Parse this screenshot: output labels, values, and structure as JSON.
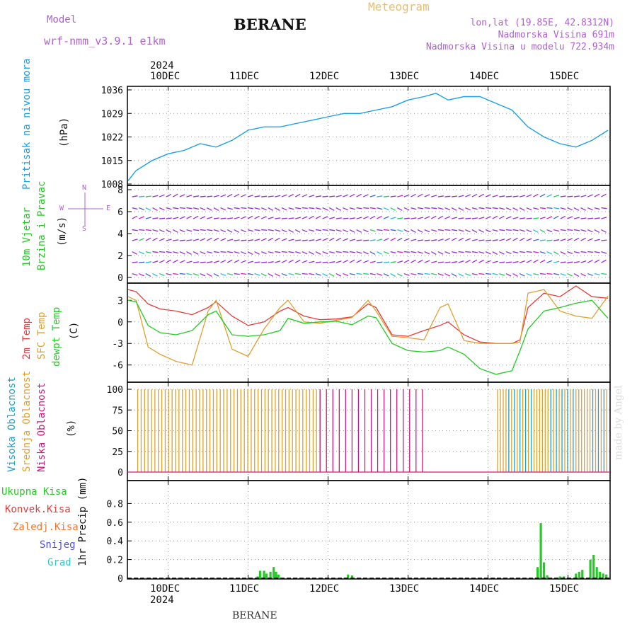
{
  "header": {
    "station": "BERANE",
    "meteogram_label": "Meteogram",
    "model_label": "Model",
    "model_name": "wrf-nmm_v3.9.1 e1km",
    "location": "lon,lat (19.85E, 42.8312N)",
    "elevation": "Nadmorska Visina 691m",
    "model_elevation": "Nadmorska Visina u modelu 722.934m",
    "footer_station": "BERANE",
    "watermark": "made by Angel"
  },
  "colors": {
    "pressure": "#1aa0e6",
    "temp": "#e83c3c",
    "sfc_temp": "#e0a030",
    "dewpt": "#22cc22",
    "high_cloud": "#1fa0c8",
    "mid_cloud": "#e0a030",
    "low_cloud": "#d0187a",
    "rain_total": "#22cc22",
    "rain_conv": "#e83c3c",
    "rain_frz": "#f07830",
    "snow": "#5050e0",
    "hail": "#30c8c8",
    "wind_purple": "#9a2ed8"
  },
  "chart_data": [
    {
      "type": "line",
      "name": "pressure",
      "ylabel_side": "Pritisak na nivou mora",
      "ylabel": "(hPa)",
      "ylim": [
        1008,
        1036
      ],
      "yticks": [
        1008,
        1015,
        1022,
        1029,
        1036
      ],
      "x_day_ticks": [
        "10DEC",
        "11DEC",
        "12DEC",
        "13DEC",
        "14DEC",
        "15DEC"
      ],
      "x_year": "2024",
      "x": [
        9.5,
        9.6,
        9.8,
        10.0,
        10.2,
        10.4,
        10.6,
        10.8,
        11.0,
        11.2,
        11.4,
        11.6,
        11.8,
        12.0,
        12.2,
        12.4,
        12.6,
        12.8,
        13.0,
        13.2,
        13.35,
        13.5,
        13.7,
        13.9,
        14.1,
        14.3,
        14.5,
        14.7,
        14.9,
        15.1,
        15.3,
        15.5
      ],
      "values": [
        1009,
        1012,
        1015,
        1017,
        1018,
        1020,
        1019,
        1021,
        1024,
        1025,
        1025,
        1026,
        1027,
        1028,
        1029,
        1029,
        1030,
        1031,
        1033,
        1034,
        1035,
        1033,
        1034,
        1034,
        1032,
        1030,
        1025,
        1022,
        1020,
        1019,
        1021,
        1024
      ]
    },
    {
      "type": "scatter",
      "name": "wind",
      "ylabel_side_1": "10m Vjetar",
      "ylabel_side_2": "Brzina i Pravac",
      "ylabel": "(m/s)",
      "compass": [
        "N",
        "W",
        "E",
        "S"
      ],
      "ylim": [
        0,
        8
      ],
      "yticks": [
        0,
        2,
        4,
        6,
        8
      ]
    },
    {
      "type": "line",
      "name": "temperature",
      "ylabel_side_1": "2m Temp",
      "ylabel_side_2": "SFC Temp",
      "ylabel_side_3": "dewpt Temp",
      "ylabel": "(C)",
      "ylim": [
        -8,
        5
      ],
      "yticks": [
        -6,
        -3,
        0,
        3
      ],
      "x": [
        9.5,
        9.6,
        9.75,
        9.9,
        10.1,
        10.3,
        10.5,
        10.6,
        10.8,
        11.0,
        11.2,
        11.4,
        11.5,
        11.7,
        11.9,
        12.1,
        12.3,
        12.5,
        12.6,
        12.8,
        13.0,
        13.2,
        13.4,
        13.5,
        13.7,
        13.9,
        14.1,
        14.3,
        14.4,
        14.5,
        14.7,
        14.9,
        15.1,
        15.3,
        15.5
      ],
      "series": [
        {
          "name": "2m Temp",
          "values": [
            4.5,
            4.2,
            2.5,
            1.8,
            1.5,
            1.0,
            2.0,
            2.8,
            0.8,
            -0.5,
            0.0,
            1.5,
            2.0,
            0.8,
            0.3,
            0.4,
            0.7,
            2.5,
            2.0,
            -1.8,
            -2.0,
            -1.2,
            -0.5,
            0.0,
            -1.8,
            -2.8,
            -3.0,
            -3.0,
            -2.5,
            2.0,
            4.0,
            3.5,
            5.0,
            3.5,
            3.3
          ]
        },
        {
          "name": "SFC Temp",
          "values": [
            3.5,
            3.0,
            -3.5,
            -4.5,
            -5.5,
            -6.0,
            1.5,
            3.0,
            -3.8,
            -4.8,
            -1.0,
            2.0,
            3.0,
            0.0,
            -0.2,
            0.2,
            0.6,
            3.0,
            1.5,
            -2.0,
            -2.2,
            -2.5,
            2.0,
            2.5,
            -2.6,
            -3.0,
            -3.0,
            -3.0,
            -2.8,
            4.0,
            4.5,
            1.5,
            0.8,
            0.5,
            3.6
          ]
        },
        {
          "name": "dewpt Temp",
          "values": [
            3.0,
            2.8,
            -0.5,
            -1.5,
            -1.8,
            -1.2,
            1.0,
            1.5,
            -1.8,
            -2.0,
            -1.8,
            -1.2,
            0.5,
            -0.2,
            0.0,
            0.1,
            -0.4,
            0.8,
            0.6,
            -3.0,
            -4.0,
            -4.2,
            -4.0,
            -3.5,
            -4.5,
            -6.5,
            -7.3,
            -6.8,
            -4.0,
            -1.0,
            1.5,
            2.0,
            2.6,
            3.0,
            0.5
          ]
        }
      ]
    },
    {
      "type": "bar",
      "name": "cloudiness",
      "ylabel_side_1": "Visoka Oblacnost",
      "ylabel_side_2": "Srednja Oblacnost",
      "ylabel_side_3": "Niska Oblacnost",
      "ylabel": "(%)",
      "ylim": [
        0,
        100
      ],
      "yticks": [
        0,
        25,
        50,
        75,
        100
      ]
    },
    {
      "type": "bar",
      "name": "precipitation",
      "legend": [
        "Ukupna Kisa",
        "Konvek.Kisa",
        "Zaledj.Kisa",
        "Snijeg",
        "Grad"
      ],
      "ylabel": "1hr Precip (mm)",
      "ylim": [
        0,
        1.0
      ],
      "yticks": [
        0,
        0.2,
        0.4,
        0.6,
        0.8
      ],
      "x_year": "2024",
      "x": [
        11.12,
        11.15,
        11.2,
        11.23,
        11.28,
        11.32,
        11.35,
        11.38,
        12.25,
        12.3,
        14.62,
        14.66,
        14.7,
        14.74,
        14.9,
        14.95,
        15.1,
        15.14,
        15.18,
        15.28,
        15.32,
        15.36,
        15.4,
        15.44,
        15.48
      ],
      "values": [
        0.02,
        0.08,
        0.08,
        0.05,
        0.07,
        0.12,
        0.07,
        0.04,
        0.04,
        0.03,
        0.12,
        0.59,
        0.17,
        0.03,
        0.02,
        0.02,
        0.05,
        0.07,
        0.09,
        0.2,
        0.25,
        0.12,
        0.07,
        0.05,
        0.04
      ]
    }
  ]
}
